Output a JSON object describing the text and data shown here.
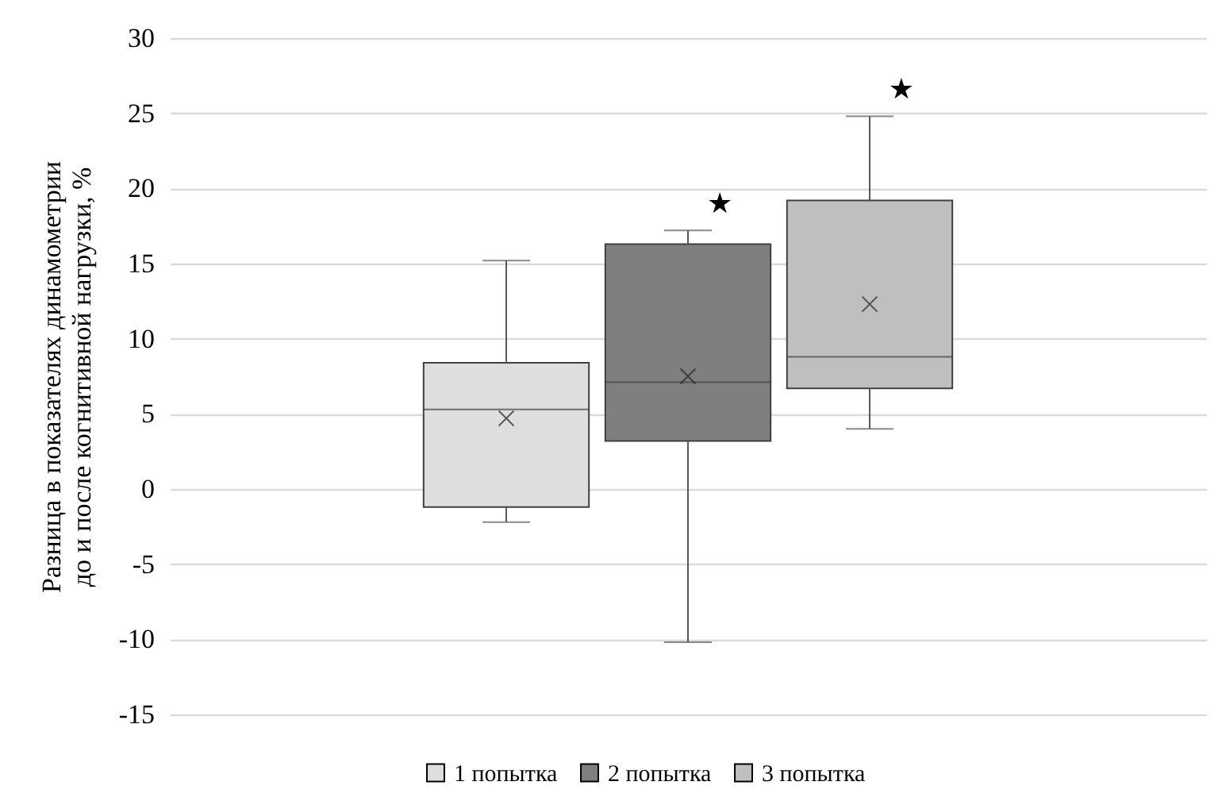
{
  "chart_data": {
    "type": "box",
    "ylabel": "Разница в показателях динамометрии\nдо и после когнитивной нагрузки, %",
    "categories": [
      null
    ],
    "series": [
      {
        "name": "1 попытка",
        "color": "#dedede",
        "boxes": [
          {
            "low": -2.2,
            "q1": -1.2,
            "median": 5.3,
            "q3": 8.4,
            "high": 15.2,
            "mean": 4.7
          }
        ]
      },
      {
        "name": "2 попытка",
        "color": "#7f7f7f",
        "boxes": [
          {
            "low": -10.2,
            "q1": 3.2,
            "median": 7.1,
            "q3": 16.3,
            "high": 17.2,
            "mean": 7.5
          }
        ]
      },
      {
        "name": "3 попытка",
        "color": "#bfbfbf",
        "boxes": [
          {
            "low": 4.0,
            "q1": 6.7,
            "median": 8.8,
            "q3": 19.2,
            "high": 24.8,
            "mean": 12.3
          }
        ]
      }
    ],
    "annotations": [
      "★",
      "★"
    ],
    "ylim": [
      -15,
      30
    ],
    "yticks": [
      -15,
      -10,
      -5,
      0,
      5,
      10,
      15,
      20,
      25,
      30
    ],
    "grid": "y",
    "legend": "bottom",
    "marker": "cross"
  }
}
